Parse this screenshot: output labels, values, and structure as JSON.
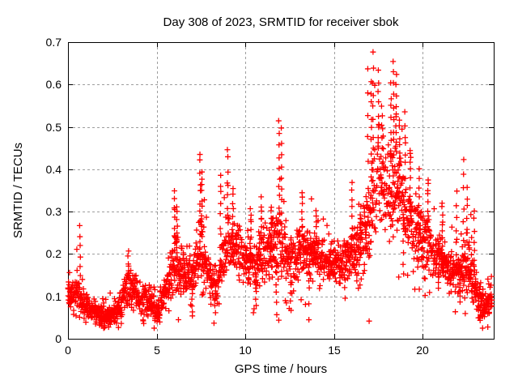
{
  "page": {
    "background": "#ffffff"
  },
  "chart_data": {
    "type": "scatter",
    "title": "Day 308 of 2023, SRMTID for receiver sbok",
    "xlabel": "GPS time / hours",
    "ylabel": "SRMTID / TECUs",
    "xlim": [
      0,
      24
    ],
    "ylim": [
      0,
      0.7
    ],
    "xticks": {
      "values": [
        0,
        5,
        10,
        15,
        20
      ],
      "labels": [
        "0",
        "5",
        "10",
        "15",
        "20"
      ]
    },
    "yticks": {
      "values": [
        0,
        0.1,
        0.2,
        0.3,
        0.4,
        0.5,
        0.6,
        0.7
      ],
      "labels": [
        "0",
        "0.1",
        "0.2",
        "0.3",
        "0.4",
        "0.5",
        "0.6",
        "0.7"
      ]
    },
    "grid": {
      "show": true,
      "style": "dashed",
      "color": "#9e9e9e"
    },
    "axes_color": "#000000",
    "background": "#ffffff",
    "legend": null,
    "marker": {
      "shape": "plus",
      "color": "#ff0000",
      "size": 7,
      "stroke": 1.3
    },
    "series": [
      {
        "name": "SRMTID receiver sbok day 308",
        "description": "Dense scatter of ~2700 red plus markers; band rises from ~0.05-0.1 TECU near hours 1-5 to ~0.2 through midday, storm peak 0.4-0.68 near hours 17-19, decaying to ~0.1 by hour 24.",
        "t_max": 23.9,
        "approx_point_count": 2700,
        "seed": 308,
        "profile_t_step": 0.5,
        "profile_mean": [
          0.1,
          0.11,
          0.08,
          0.06,
          0.05,
          0.055,
          0.08,
          0.13,
          0.1,
          0.09,
          0.07,
          0.11,
          0.17,
          0.16,
          0.15,
          0.22,
          0.13,
          0.14,
          0.23,
          0.21,
          0.19,
          0.18,
          0.19,
          0.21,
          0.24,
          0.18,
          0.21,
          0.21,
          0.19,
          0.18,
          0.18,
          0.17,
          0.2,
          0.21,
          0.28,
          0.4,
          0.33,
          0.38,
          0.29,
          0.27,
          0.24,
          0.21,
          0.19,
          0.16,
          0.15,
          0.18,
          0.11,
          0.08,
          0.11
        ],
        "profile_spread": [
          0.03,
          0.05,
          0.03,
          0.025,
          0.025,
          0.025,
          0.04,
          0.05,
          0.04,
          0.035,
          0.035,
          0.05,
          0.08,
          0.06,
          0.06,
          0.1,
          0.05,
          0.06,
          0.08,
          0.07,
          0.06,
          0.06,
          0.07,
          0.08,
          0.1,
          0.07,
          0.06,
          0.06,
          0.06,
          0.05,
          0.05,
          0.05,
          0.08,
          0.08,
          0.12,
          0.14,
          0.1,
          0.12,
          0.08,
          0.08,
          0.08,
          0.06,
          0.06,
          0.05,
          0.05,
          0.08,
          0.05,
          0.035,
          0.04
        ],
        "spikes": [
          [
            0.68,
            0.27
          ],
          [
            3.4,
            0.21
          ],
          [
            6.0,
            0.35
          ],
          [
            6.15,
            0.31
          ],
          [
            7.45,
            0.44
          ],
          [
            7.55,
            0.4
          ],
          [
            8.6,
            0.39
          ],
          [
            9.0,
            0.45
          ],
          [
            9.3,
            0.36
          ],
          [
            10.3,
            0.31
          ],
          [
            10.9,
            0.33
          ],
          [
            11.45,
            0.31
          ],
          [
            11.9,
            0.52
          ],
          [
            12.05,
            0.49
          ],
          [
            13.2,
            0.35
          ],
          [
            14.0,
            0.3
          ],
          [
            16.0,
            0.37
          ],
          [
            16.5,
            0.31
          ],
          [
            16.9,
            0.64
          ],
          [
            17.1,
            0.61
          ],
          [
            17.2,
            0.675
          ],
          [
            17.5,
            0.63
          ],
          [
            17.7,
            0.55
          ],
          [
            18.2,
            0.6
          ],
          [
            18.35,
            0.655
          ],
          [
            18.5,
            0.62
          ],
          [
            18.7,
            0.52
          ],
          [
            19.0,
            0.53
          ],
          [
            19.3,
            0.45
          ],
          [
            19.8,
            0.4
          ],
          [
            20.3,
            0.38
          ],
          [
            21.1,
            0.32
          ],
          [
            21.9,
            0.35
          ],
          [
            22.3,
            0.43
          ],
          [
            22.5,
            0.35
          ],
          [
            22.9,
            0.3
          ]
        ],
        "dips": [
          [
            1.9,
            0.03
          ],
          [
            2.3,
            0.028
          ],
          [
            3.0,
            0.04
          ],
          [
            4.9,
            0.04
          ],
          [
            5.15,
            0.045
          ],
          [
            7.0,
            0.05
          ],
          [
            8.3,
            0.065
          ],
          [
            10.6,
            0.08
          ],
          [
            11.75,
            0.06
          ],
          [
            12.55,
            0.07
          ],
          [
            13.6,
            0.045
          ],
          [
            15.6,
            0.1
          ],
          [
            18.9,
            0.15
          ],
          [
            20.9,
            0.12
          ],
          [
            22.1,
            0.09
          ],
          [
            23.25,
            0.04
          ],
          [
            23.45,
            0.05
          ]
        ]
      }
    ]
  }
}
